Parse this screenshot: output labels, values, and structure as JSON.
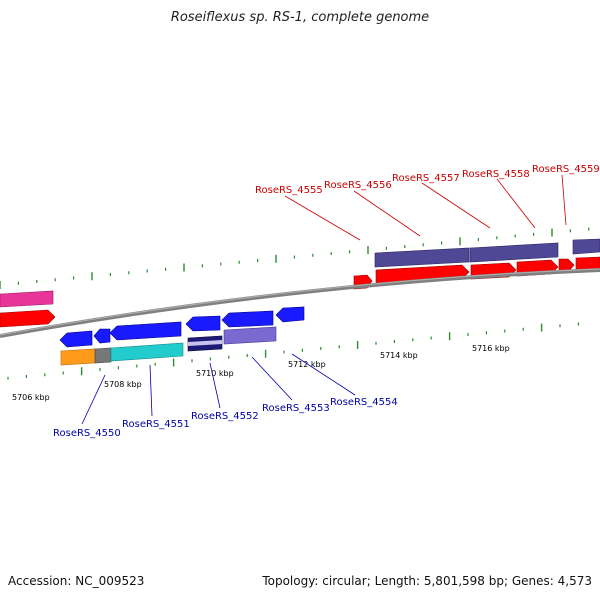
{
  "title": "Roseiflexus sp. RS-1, complete genome",
  "footer": {
    "accession_label": "Accession:",
    "accession": "NC_009523",
    "topology_label": "Topology:",
    "topology": "circular",
    "length_label": "Length:",
    "length": "5,801,598 bp",
    "genes_label": "Genes:",
    "genes": "4,573"
  },
  "colors": {
    "backbone": "#808080",
    "tick": "#2e8b2e",
    "forward_cds": "#ff0000",
    "reverse_cds": "#1a1aff",
    "forward_gene_bar": "#4f4896",
    "reverse_gene_bar": "#7a6ad0",
    "magenta": "#e8359a",
    "orange": "#ff9a1a",
    "cyan": "#22cccc",
    "gray": "#777777",
    "forward_label": "#cc0000",
    "reverse_label": "#0000aa",
    "kbp_label": "#000000"
  },
  "kbp_labels": [
    "5706 kbp",
    "5708 kbp",
    "5710 kbp",
    "5712 kbp",
    "5714 kbp",
    "5716 kbp"
  ],
  "forward_gene_labels": [
    "RoseRS_4555",
    "RoseRS_4556",
    "RoseRS_4557",
    "RoseRS_4558",
    "RoseRS_4559"
  ],
  "reverse_gene_labels": [
    "RoseRS_4550",
    "RoseRS_4551",
    "RoseRS_4552",
    "RoseRS_4553",
    "RoseRS_4554"
  ]
}
